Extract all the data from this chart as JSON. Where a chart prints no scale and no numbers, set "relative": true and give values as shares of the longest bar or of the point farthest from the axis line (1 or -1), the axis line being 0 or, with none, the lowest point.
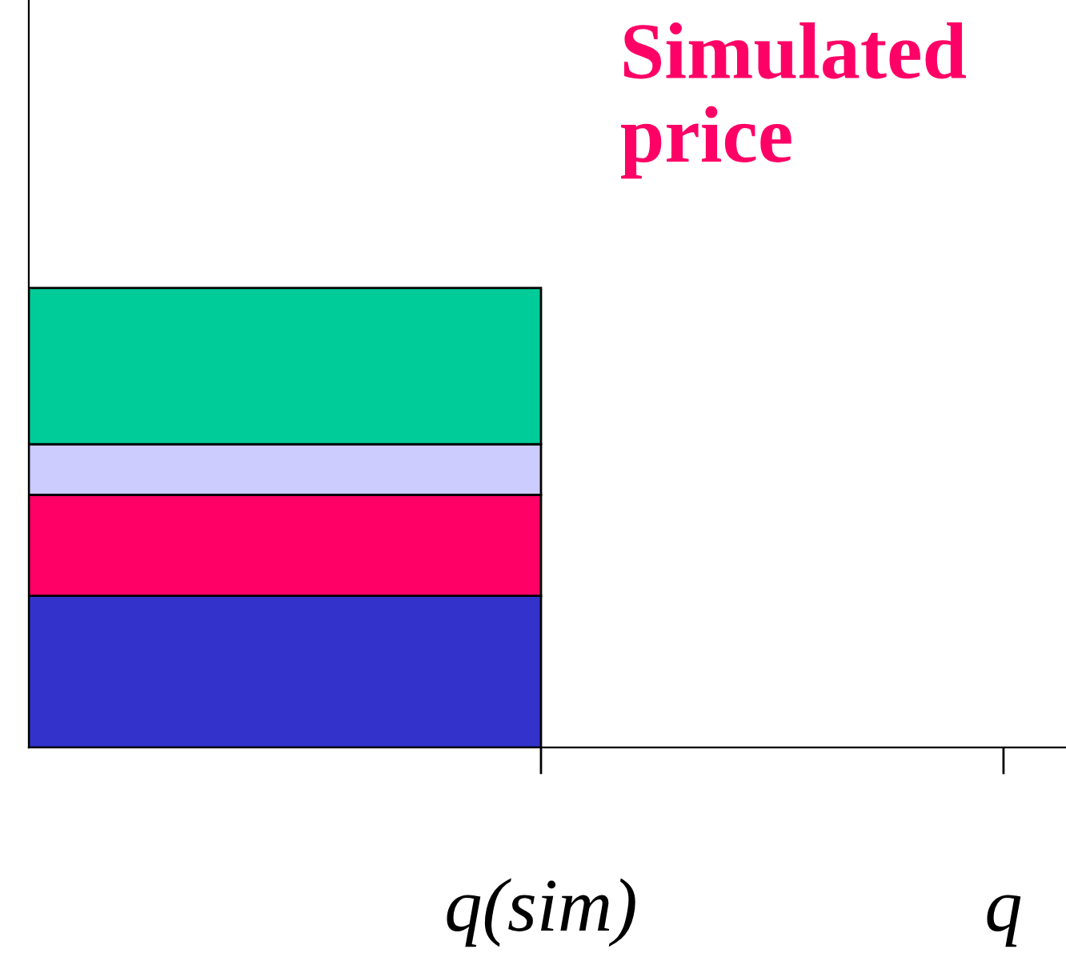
{
  "chart_data": {
    "type": "bar",
    "stacked": true,
    "relative": true,
    "categories": [
      null
    ],
    "series": [
      {
        "color": "#3333cc",
        "values": [
          0.33
        ]
      },
      {
        "color": "#ff0066",
        "values": [
          0.22
        ]
      },
      {
        "color": "#ccccff",
        "values": [
          0.11
        ]
      },
      {
        "color": "#00cc99",
        "values": [
          0.34
        ]
      }
    ],
    "annotations": [
      "Simulated price",
      "q(sim)",
      "q"
    ],
    "grid": false,
    "legend": false
  }
}
